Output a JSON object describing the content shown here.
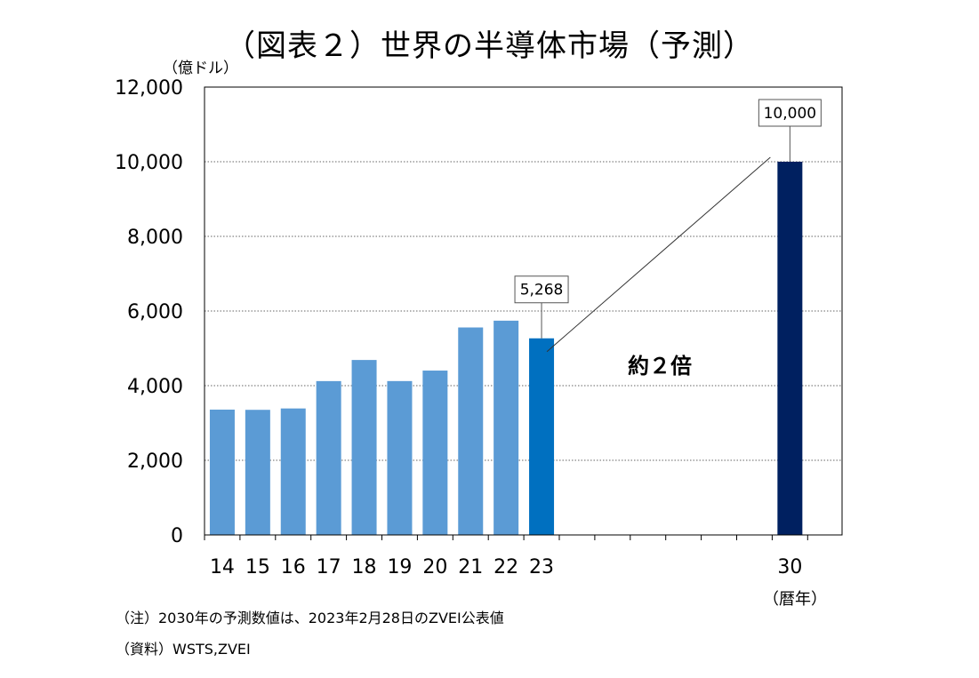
{
  "chart_data": {
    "type": "bar",
    "title": "（図表２）世界の半導体市場（予測）",
    "y_unit_label": "（億ドル）",
    "x_unit_label": "（暦年）",
    "categories": [
      "14",
      "15",
      "16",
      "17",
      "18",
      "19",
      "20",
      "21",
      "22",
      "23",
      "30"
    ],
    "values": [
      3358,
      3352,
      3389,
      4122,
      4688,
      4123,
      4404,
      5559,
      5741,
      5268,
      10000
    ],
    "ylim": [
      0,
      12000
    ],
    "yticks": [
      0,
      2000,
      4000,
      6000,
      8000,
      10000,
      12000
    ],
    "ytick_labels": [
      "0",
      "2,000",
      "4,000",
      "6,000",
      "8,000",
      "10,000",
      "12,000"
    ],
    "grid": "horizontal dotted",
    "data_labels": [
      {
        "category": "23",
        "text": "5,268"
      },
      {
        "category": "30",
        "text": "10,000"
      }
    ],
    "annotation": "約２倍",
    "colors": {
      "actual": "#5b9bd5",
      "latest": "#0070c0",
      "forecast": "#002060"
    }
  },
  "notes": {
    "note1": "（注）2030年の予測数値は、2023年2月28日のZVEI公表値",
    "note2": "（資料）WSTS,ZVEI"
  }
}
